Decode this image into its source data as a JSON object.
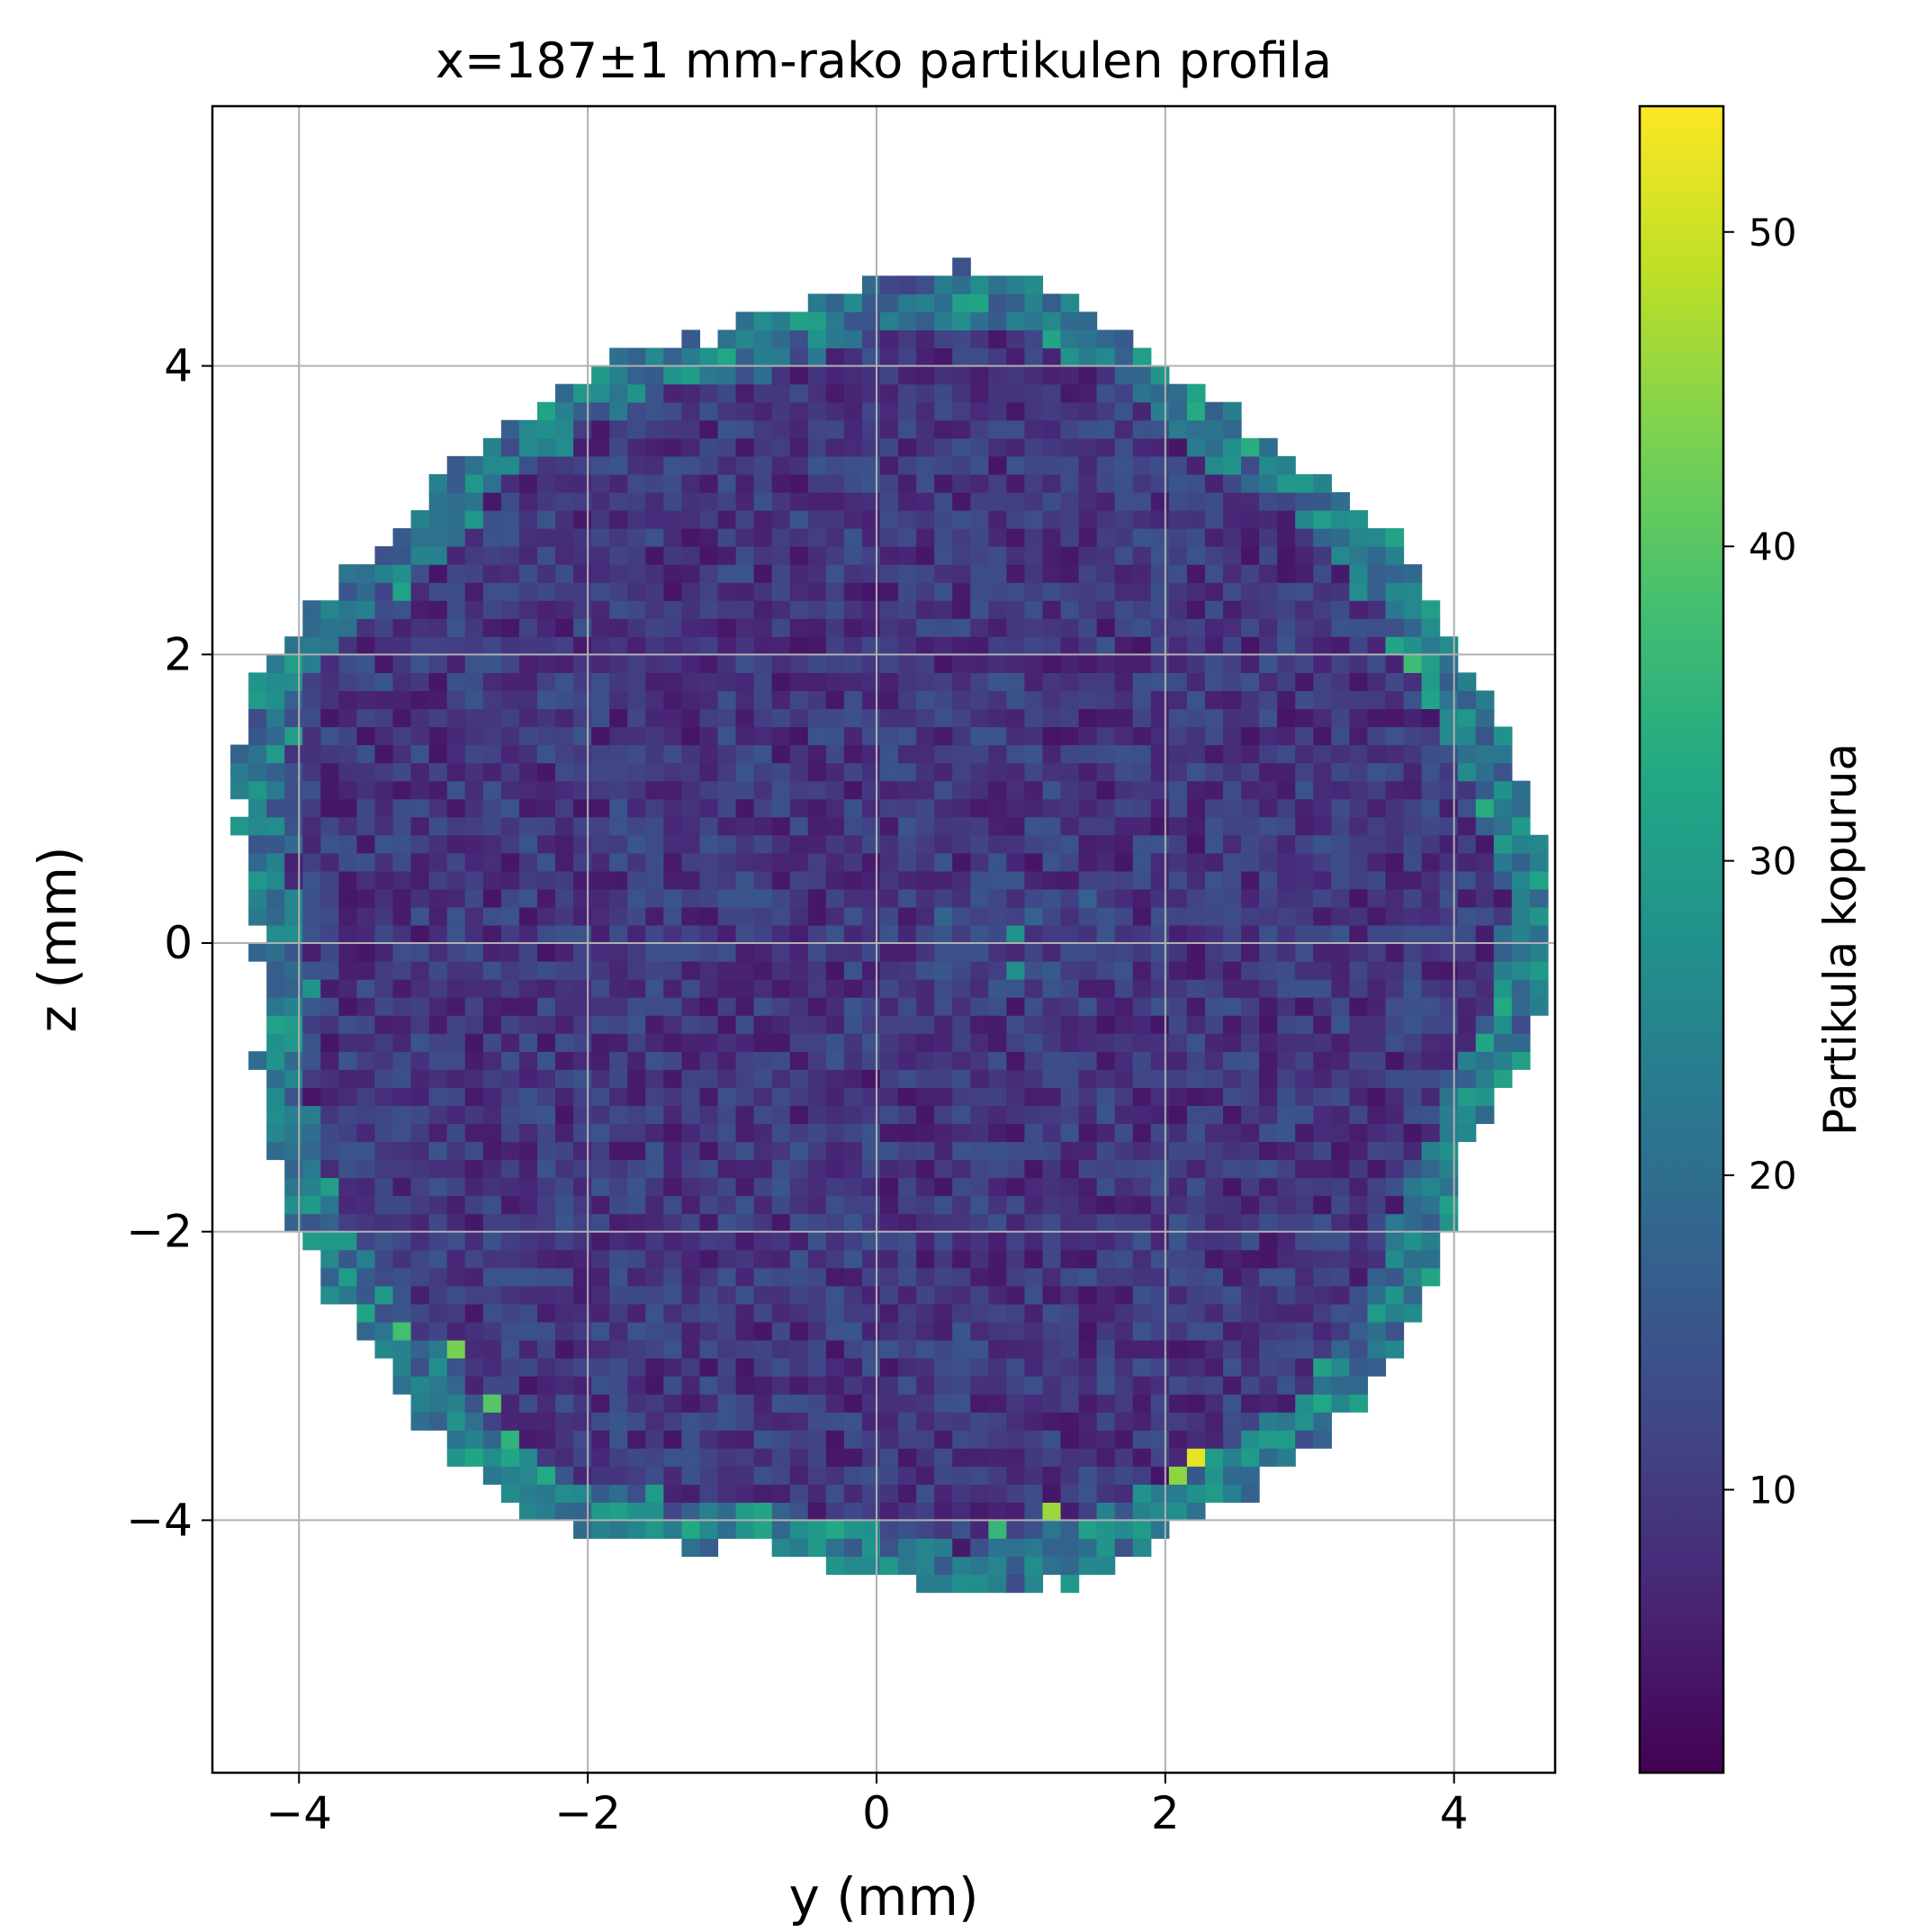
{
  "chart_data": {
    "type": "heatmap",
    "title": "x=187±1 mm-rako partikulen profila",
    "xlabel": "y (mm)",
    "ylabel": "z (mm)",
    "xlim": [
      -4.6,
      4.7
    ],
    "ylim": [
      -5.75,
      5.8
    ],
    "xticks": [
      -4,
      -2,
      0,
      2,
      4
    ],
    "yticks": [
      -4,
      -2,
      0,
      2,
      4
    ],
    "xtick_labels": [
      "−4",
      "−2",
      "0",
      "2",
      "4"
    ],
    "ytick_labels": [
      "−4",
      "−2",
      "0",
      "2",
      "4"
    ],
    "grid": true,
    "colormap": "viridis",
    "colorbar": {
      "label": "Partikula kopurua",
      "range": [
        1,
        54
      ],
      "ticks": [
        10,
        20,
        30,
        40,
        50
      ],
      "tick_labels": [
        "10",
        "20",
        "30",
        "40",
        "50"
      ]
    },
    "binning": {
      "bin_size_mm": 0.125,
      "occupied_region": "approximately circular, radius about 4.5 mm, centred near (0.05, 0); empty bins outside are white",
      "typical_count_interior": [
        3,
        15
      ],
      "edge_counts": [
        20,
        50
      ]
    },
    "highlighted_bins": [
      {
        "y": 2.17,
        "z": -3.6,
        "count": 52
      },
      {
        "y": 1.2,
        "z": -3.95,
        "count": 46
      },
      {
        "y": 2.05,
        "z": -3.7,
        "count": 45
      },
      {
        "y": -2.95,
        "z": -2.85,
        "count": 43
      },
      {
        "y": -4.25,
        "z": -0.6,
        "count": 40
      },
      {
        "y": -2.7,
        "z": -3.2,
        "count": 40
      },
      {
        "y": -3.25,
        "z": -2.7,
        "count": 38
      },
      {
        "y": 3.7,
        "z": 1.95,
        "count": 37
      },
      {
        "y": 0.8,
        "z": -4.05,
        "count": 36
      },
      {
        "y": -2.5,
        "z": -3.45,
        "count": 35
      },
      {
        "y": -2.25,
        "z": -3.7,
        "count": 33
      },
      {
        "y": -4.4,
        "z": 0.5,
        "count": 32
      },
      {
        "y": -2.6,
        "z": 3.6,
        "count": 32
      },
      {
        "y": 3.95,
        "z": -2.05,
        "count": 30
      },
      {
        "y": 2.3,
        "z": -3.55,
        "count": 30
      },
      {
        "y": 0.95,
        "z": 0.1,
        "count": 28
      },
      {
        "y": 1.0,
        "z": -0.15,
        "count": 27
      },
      {
        "y": 3.8,
        "z": 1.8,
        "count": 30
      },
      {
        "y": 4.1,
        "z": -1.65,
        "count": 29
      },
      {
        "y": -3.6,
        "z": -2.35,
        "count": 30
      },
      {
        "y": -4.0,
        "z": -1.8,
        "count": 27
      },
      {
        "y": 2.9,
        "z": -3.2,
        "count": 27
      },
      {
        "y": 3.2,
        "z": -2.9,
        "count": 26
      },
      {
        "y": 0.6,
        "z": 4.35,
        "count": 27
      },
      {
        "y": -0.6,
        "z": -4.35,
        "count": 27
      }
    ]
  }
}
